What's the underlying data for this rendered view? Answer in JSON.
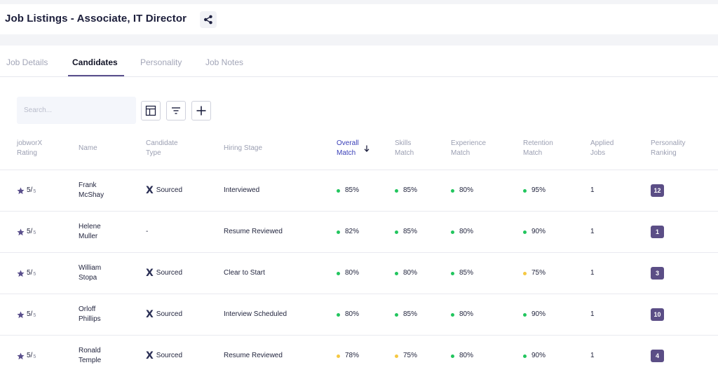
{
  "page": {
    "title": "Job Listings - Associate, IT Director"
  },
  "tabs": [
    {
      "label": "Job Details",
      "active": false
    },
    {
      "label": "Candidates",
      "active": true
    },
    {
      "label": "Personality",
      "active": false
    },
    {
      "label": "Job Notes",
      "active": false
    }
  ],
  "toolbar": {
    "search_placeholder": "Search...",
    "icons": [
      "columns-icon",
      "filter-icon",
      "plus-icon"
    ]
  },
  "table": {
    "headers": {
      "rating": [
        "jobworX",
        "Rating"
      ],
      "name": [
        "Name"
      ],
      "type": [
        "Candidate",
        "Type"
      ],
      "stage": [
        "Hiring Stage"
      ],
      "overall": [
        "Overall",
        "Match"
      ],
      "skills": [
        "Skills",
        "Match"
      ],
      "experience": [
        "Experience",
        "Match"
      ],
      "retention": [
        "Retention",
        "Match"
      ],
      "applied": [
        "Applied",
        "Jobs"
      ],
      "personality": [
        "Personality",
        "Ranking"
      ]
    },
    "rows": [
      {
        "rating": "5/",
        "rating_den": "5",
        "first": "Frank",
        "last": "McShay",
        "type": "Sourced",
        "stage": "Interviewed",
        "overall": "85%",
        "skills": "85%",
        "experience": "80%",
        "retention": "95%",
        "applied": "1",
        "ranking": "12",
        "dots": {
          "overall": "green",
          "skills": "green",
          "experience": "green",
          "retention": "green"
        }
      },
      {
        "rating": "5/",
        "rating_den": "5",
        "first": "Helene",
        "last": "Muller",
        "type": "-",
        "stage": "Resume Reviewed",
        "overall": "82%",
        "skills": "85%",
        "experience": "80%",
        "retention": "90%",
        "applied": "1",
        "ranking": "1",
        "dots": {
          "overall": "green",
          "skills": "green",
          "experience": "green",
          "retention": "green"
        }
      },
      {
        "rating": "5/",
        "rating_den": "5",
        "first": "William",
        "last": "Stopa",
        "type": "Sourced",
        "stage": "Clear to Start",
        "overall": "80%",
        "skills": "80%",
        "experience": "85%",
        "retention": "75%",
        "applied": "1",
        "ranking": "3",
        "dots": {
          "overall": "green",
          "skills": "green",
          "experience": "green",
          "retention": "yellow"
        }
      },
      {
        "rating": "5/",
        "rating_den": "5",
        "first": "Orloff",
        "last": "Phillips",
        "type": "Sourced",
        "stage": "Interview Scheduled",
        "overall": "80%",
        "skills": "85%",
        "experience": "80%",
        "retention": "90%",
        "applied": "1",
        "ranking": "10",
        "dots": {
          "overall": "green",
          "skills": "green",
          "experience": "green",
          "retention": "green"
        }
      },
      {
        "rating": "5/",
        "rating_den": "5",
        "first": "Ronald",
        "last": "Temple",
        "type": "Sourced",
        "stage": "Resume Reviewed",
        "overall": "78%",
        "skills": "75%",
        "experience": "80%",
        "retention": "90%",
        "applied": "1",
        "ranking": "4",
        "dots": {
          "overall": "yellow",
          "skills": "yellow",
          "experience": "green",
          "retention": "green"
        }
      }
    ]
  },
  "colors": {
    "green": "#22c55e",
    "yellow": "#f5c842",
    "accent": "#5b4e86",
    "sort_header": "#3a3fb8"
  }
}
